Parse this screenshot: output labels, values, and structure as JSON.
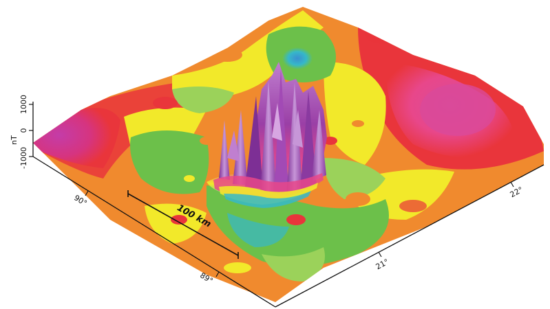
{
  "vertical_axis": {
    "label": "nT",
    "ticks": [
      "1000",
      "0",
      "-1000"
    ]
  },
  "scale_bar": {
    "label": "100 km"
  },
  "longitude_ticks": [
    "90°",
    "89°"
  ],
  "latitude_ticks": [
    "21°",
    "22°"
  ],
  "colors": {
    "magenta": "#d6347f",
    "pink": "#e8478a",
    "red": "#e9353b",
    "orange": "#f08a2e",
    "yellow": "#f2e92a",
    "green": "#6cc04a",
    "light_green": "#9bd25a",
    "cyan": "#36b8c9",
    "blue": "#3e6fc7",
    "purple": "#9a3fa6",
    "violet": "#c07fd0"
  }
}
